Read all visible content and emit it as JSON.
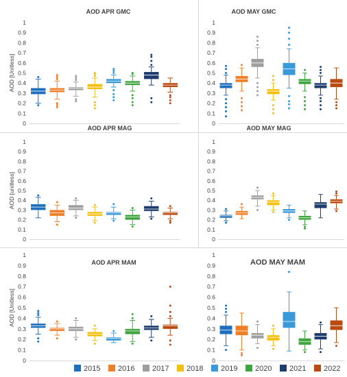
{
  "chart_data": [
    {
      "type": "box",
      "title": "AOD APR GMC",
      "ylabel": "AOD [Unitless]",
      "ylim": [
        0,
        1
      ],
      "yticks": [
        "0",
        "0.1",
        "0.2",
        "0.3",
        "0.4",
        "0.5",
        "0.6",
        "0.7",
        "0.8",
        "0.9",
        "1"
      ],
      "series": [
        {
          "name": "2015",
          "q1": 0.29,
          "median": 0.32,
          "q3": 0.35,
          "wmin": 0.2,
          "wmax": 0.44,
          "outliers": [
            0.18,
            0.46
          ]
        },
        {
          "name": "2016",
          "q1": 0.31,
          "median": 0.33,
          "q3": 0.35,
          "wmin": 0.24,
          "wmax": 0.42,
          "outliers": [
            0.16,
            0.18,
            0.2,
            0.44,
            0.46,
            0.48
          ]
        },
        {
          "name": "2017",
          "q1": 0.33,
          "median": 0.35,
          "q3": 0.36,
          "wmin": 0.27,
          "wmax": 0.41,
          "outliers": [
            0.22,
            0.24,
            0.43,
            0.45,
            0.47
          ]
        },
        {
          "name": "2018",
          "q1": 0.34,
          "median": 0.36,
          "q3": 0.39,
          "wmin": 0.26,
          "wmax": 0.45,
          "outliers": [
            0.15,
            0.18,
            0.21,
            0.47,
            0.49,
            0.5
          ]
        },
        {
          "name": "2019",
          "q1": 0.4,
          "median": 0.42,
          "q3": 0.44,
          "wmin": 0.36,
          "wmax": 0.48,
          "outliers": [
            0.23,
            0.26,
            0.29,
            0.33,
            0.5,
            0.52,
            0.54
          ]
        },
        {
          "name": "2020",
          "q1": 0.38,
          "median": 0.4,
          "q3": 0.42,
          "wmin": 0.32,
          "wmax": 0.47,
          "outliers": [
            0.18,
            0.21,
            0.25,
            0.28,
            0.49,
            0.5
          ]
        },
        {
          "name": "2021",
          "q1": 0.44,
          "median": 0.48,
          "q3": 0.51,
          "wmin": 0.38,
          "wmax": 0.56,
          "outliers": [
            0.21,
            0.25,
            0.58,
            0.62,
            0.66,
            0.68
          ]
        },
        {
          "name": "2022",
          "q1": 0.36,
          "median": 0.38,
          "q3": 0.4,
          "wmin": 0.31,
          "wmax": 0.45,
          "outliers": [
            0.2,
            0.23,
            0.26,
            0.28
          ]
        }
      ]
    },
    {
      "type": "box",
      "title": "AOD MAY GMC",
      "ylabel": "",
      "ylim": [
        0,
        1
      ],
      "yticks": [
        "0",
        "0.1",
        "0.2",
        "0.3",
        "0.4",
        "0.5",
        "0.6",
        "0.7",
        "0.8",
        "0.9",
        "1"
      ],
      "series": [
        {
          "name": "2015",
          "q1": 0.35,
          "median": 0.38,
          "q3": 0.4,
          "wmin": 0.28,
          "wmax": 0.48,
          "outliers": [
            0.07,
            0.12,
            0.16,
            0.2,
            0.24,
            0.5,
            0.54,
            0.57
          ]
        },
        {
          "name": "2016",
          "q1": 0.41,
          "median": 0.44,
          "q3": 0.47,
          "wmin": 0.32,
          "wmax": 0.55,
          "outliers": [
            0.13,
            0.17,
            0.21,
            0.25,
            0.58
          ]
        },
        {
          "name": "2017",
          "q1": 0.56,
          "median": 0.6,
          "q3": 0.64,
          "wmin": 0.45,
          "wmax": 0.75,
          "outliers": [
            0.28,
            0.32,
            0.36,
            0.4,
            0.78,
            0.82,
            0.86
          ]
        },
        {
          "name": "2018",
          "q1": 0.29,
          "median": 0.32,
          "q3": 0.34,
          "wmin": 0.23,
          "wmax": 0.4,
          "outliers": [
            0.1,
            0.14,
            0.18,
            0.43,
            0.47
          ]
        },
        {
          "name": "2019",
          "q1": 0.48,
          "median": 0.54,
          "q3": 0.6,
          "wmin": 0.35,
          "wmax": 0.74,
          "outliers": [
            0.15,
            0.19,
            0.22,
            0.27,
            0.78,
            0.84,
            0.9,
            0.95
          ]
        },
        {
          "name": "2020",
          "q1": 0.39,
          "median": 0.42,
          "q3": 0.44,
          "wmin": 0.32,
          "wmax": 0.5,
          "outliers": [
            0.14,
            0.18,
            0.22,
            0.26,
            0.53
          ]
        },
        {
          "name": "2021",
          "q1": 0.35,
          "median": 0.38,
          "q3": 0.4,
          "wmin": 0.28,
          "wmax": 0.47,
          "outliers": [
            0.14,
            0.18,
            0.22,
            0.25,
            0.5,
            0.53,
            0.56
          ]
        },
        {
          "name": "2022",
          "q1": 0.36,
          "median": 0.4,
          "q3": 0.44,
          "wmin": 0.24,
          "wmax": 0.55,
          "outliers": [
            0.15,
            0.18,
            0.21
          ]
        }
      ]
    },
    {
      "type": "box",
      "title": "AOD APR MAG",
      "ylabel": "AOD [unitless]",
      "ylim": [
        0,
        1
      ],
      "yticks": [
        "0",
        "0.1",
        "0.2",
        "0.3",
        "0.4",
        "0.5",
        "0.6",
        "0.7",
        "0.8",
        "0.9",
        "1"
      ],
      "series": [
        {
          "name": "2015",
          "q1": 0.3,
          "median": 0.33,
          "q3": 0.36,
          "wmin": 0.22,
          "wmax": 0.43,
          "outliers": [
            0.45
          ]
        },
        {
          "name": "2016",
          "q1": 0.24,
          "median": 0.27,
          "q3": 0.3,
          "wmin": 0.18,
          "wmax": 0.35,
          "outliers": [
            0.15,
            0.38
          ]
        },
        {
          "name": "2017",
          "q1": 0.3,
          "median": 0.32,
          "q3": 0.35,
          "wmin": 0.24,
          "wmax": 0.4,
          "outliers": [
            0.22,
            0.42
          ]
        },
        {
          "name": "2018",
          "q1": 0.24,
          "median": 0.26,
          "q3": 0.28,
          "wmin": 0.19,
          "wmax": 0.33,
          "outliers": [
            0.17,
            0.35
          ]
        },
        {
          "name": "2019",
          "q1": 0.25,
          "median": 0.27,
          "q3": 0.28,
          "wmin": 0.21,
          "wmax": 0.33,
          "outliers": [
            0.19,
            0.36
          ]
        },
        {
          "name": "2020",
          "q1": 0.2,
          "median": 0.23,
          "q3": 0.25,
          "wmin": 0.15,
          "wmax": 0.3,
          "outliers": [
            0.13,
            0.32
          ]
        },
        {
          "name": "2021",
          "q1": 0.29,
          "median": 0.31,
          "q3": 0.34,
          "wmin": 0.23,
          "wmax": 0.39,
          "outliers": [
            0.21,
            0.42
          ]
        },
        {
          "name": "2022",
          "q1": 0.25,
          "median": 0.27,
          "q3": 0.28,
          "wmin": 0.21,
          "wmax": 0.32,
          "outliers": [
            0.17,
            0.19,
            0.34
          ]
        }
      ]
    },
    {
      "type": "box",
      "title": "AOD MAY MAG",
      "ylabel": "",
      "ylim": [
        0,
        1
      ],
      "yticks": [
        "0",
        "0.1",
        "0.2",
        "0.3",
        "0.4",
        "0.5",
        "0.6",
        "0.7",
        "0.8",
        "0.9",
        "1"
      ],
      "series": [
        {
          "name": "2015",
          "q1": 0.22,
          "median": 0.24,
          "q3": 0.25,
          "wmin": 0.19,
          "wmax": 0.29,
          "outliers": [
            0.17,
            0.31
          ]
        },
        {
          "name": "2016",
          "q1": 0.25,
          "median": 0.27,
          "q3": 0.29,
          "wmin": 0.21,
          "wmax": 0.33,
          "outliers": [
            0.36
          ]
        },
        {
          "name": "2017",
          "q1": 0.41,
          "median": 0.43,
          "q3": 0.45,
          "wmin": 0.34,
          "wmax": 0.5,
          "outliers": [
            0.3,
            0.53
          ]
        },
        {
          "name": "2018",
          "q1": 0.35,
          "median": 0.38,
          "q3": 0.4,
          "wmin": 0.3,
          "wmax": 0.45,
          "outliers": [
            0.28,
            0.47
          ]
        },
        {
          "name": "2019",
          "q1": 0.27,
          "median": 0.29,
          "q3": 0.31,
          "wmin": 0.22,
          "wmax": 0.35,
          "outliers": [
            0.2
          ]
        },
        {
          "name": "2020",
          "q1": 0.2,
          "median": 0.22,
          "q3": 0.24,
          "wmin": 0.15,
          "wmax": 0.29,
          "outliers": [
            0.11,
            0.13
          ]
        },
        {
          "name": "2021",
          "q1": 0.32,
          "median": 0.36,
          "q3": 0.38,
          "wmin": 0.22,
          "wmax": 0.46,
          "outliers": []
        },
        {
          "name": "2022",
          "q1": 0.37,
          "median": 0.39,
          "q3": 0.41,
          "wmin": 0.31,
          "wmax": 0.45,
          "outliers": [
            0.29,
            0.47,
            0.49
          ]
        }
      ]
    },
    {
      "type": "box",
      "title": "AOD APR MAM",
      "ylabel": "AOD [Unitless]",
      "ylim": [
        0,
        1
      ],
      "yticks": [
        "0",
        "0.1",
        "0.2",
        "0.3",
        "0.4",
        "0.5",
        "0.6",
        "0.7",
        "0.8",
        "0.9",
        "1"
      ],
      "series": [
        {
          "name": "2015",
          "q1": 0.31,
          "median": 0.33,
          "q3": 0.35,
          "wmin": 0.25,
          "wmax": 0.41,
          "outliers": [
            0.18,
            0.21,
            0.43,
            0.45,
            0.47
          ]
        },
        {
          "name": "2016",
          "q1": 0.28,
          "median": 0.3,
          "q3": 0.31,
          "wmin": 0.24,
          "wmax": 0.35,
          "outliers": [
            0.21,
            0.37
          ]
        },
        {
          "name": "2017",
          "q1": 0.28,
          "median": 0.3,
          "q3": 0.32,
          "wmin": 0.22,
          "wmax": 0.38,
          "outliers": [
            0.2,
            0.4
          ]
        },
        {
          "name": "2018",
          "q1": 0.23,
          "median": 0.25,
          "q3": 0.27,
          "wmin": 0.19,
          "wmax": 0.3,
          "outliers": [
            0.16,
            0.33
          ]
        },
        {
          "name": "2019",
          "q1": 0.19,
          "median": 0.21,
          "q3": 0.22,
          "wmin": 0.17,
          "wmax": 0.26,
          "outliers": [
            0.28
          ]
        },
        {
          "name": "2020",
          "q1": 0.25,
          "median": 0.28,
          "q3": 0.3,
          "wmin": 0.18,
          "wmax": 0.38,
          "outliers": [
            0.16,
            0.4,
            0.44
          ]
        },
        {
          "name": "2021",
          "q1": 0.29,
          "median": 0.31,
          "q3": 0.33,
          "wmin": 0.22,
          "wmax": 0.39,
          "outliers": [
            0.19,
            0.42
          ]
        },
        {
          "name": "2022",
          "q1": 0.3,
          "median": 0.33,
          "q3": 0.34,
          "wmin": 0.24,
          "wmax": 0.4,
          "outliers": [
            0.15,
            0.19,
            0.42,
            0.46,
            0.52,
            0.7
          ]
        }
      ]
    },
    {
      "type": "box",
      "title": "AOD MAY MAM",
      "ylabel": "",
      "ylim": [
        0,
        1
      ],
      "yticks": [
        "0",
        "0.1",
        "0.2",
        "0.3",
        "0.4",
        "0.5",
        "0.6",
        "0.7",
        "0.8",
        "0.9",
        "1"
      ],
      "series": [
        {
          "name": "2015",
          "q1": 0.25,
          "median": 0.29,
          "q3": 0.33,
          "wmin": 0.14,
          "wmax": 0.43,
          "outliers": [
            0.1,
            0.46,
            0.49,
            0.52
          ]
        },
        {
          "name": "2016",
          "q1": 0.24,
          "median": 0.28,
          "q3": 0.33,
          "wmin": 0.1,
          "wmax": 0.45,
          "outliers": [
            0.05,
            0.07
          ]
        },
        {
          "name": "2017",
          "q1": 0.21,
          "median": 0.24,
          "q3": 0.26,
          "wmin": 0.16,
          "wmax": 0.34,
          "outliers": [
            0.12,
            0.37
          ]
        },
        {
          "name": "2018",
          "q1": 0.19,
          "median": 0.22,
          "q3": 0.24,
          "wmin": 0.14,
          "wmax": 0.3,
          "outliers": [
            0.11,
            0.33
          ]
        },
        {
          "name": "2019",
          "q1": 0.31,
          "median": 0.37,
          "q3": 0.46,
          "wmin": 0.09,
          "wmax": 0.65,
          "outliers": [
            0.84
          ]
        },
        {
          "name": "2020",
          "q1": 0.15,
          "median": 0.18,
          "q3": 0.21,
          "wmin": 0.1,
          "wmax": 0.28,
          "outliers": [
            0.08
          ]
        },
        {
          "name": "2021",
          "q1": 0.2,
          "median": 0.23,
          "q3": 0.26,
          "wmin": 0.11,
          "wmax": 0.34,
          "outliers": [
            0.08,
            0.36
          ]
        },
        {
          "name": "2022",
          "q1": 0.29,
          "median": 0.33,
          "q3": 0.38,
          "wmin": 0.17,
          "wmax": 0.5,
          "outliers": [
            0.14
          ]
        }
      ]
    }
  ],
  "legend": {
    "placement": "bottom",
    "items": [
      {
        "name": "2015",
        "color": "#1f6fbf"
      },
      {
        "name": "2016",
        "color": "#f07f2a"
      },
      {
        "name": "2017",
        "color": "#9e9e9e"
      },
      {
        "name": "2018",
        "color": "#f5bf10"
      },
      {
        "name": "2019",
        "color": "#3a9ad9"
      },
      {
        "name": "2020",
        "color": "#3fa63f"
      },
      {
        "name": "2021",
        "color": "#1e3d6e"
      },
      {
        "name": "2022",
        "color": "#b84a12"
      }
    ]
  }
}
